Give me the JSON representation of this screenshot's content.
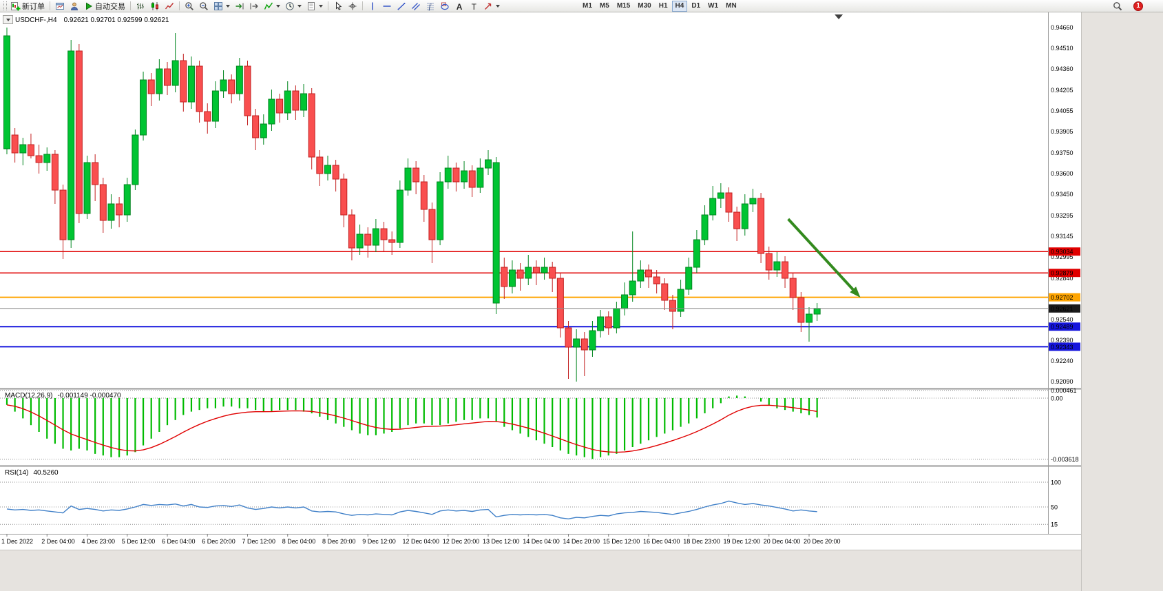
{
  "toolbar": {
    "active_timeframe": "H4",
    "items": [
      {
        "t": "grip"
      },
      {
        "t": "btn",
        "name": "new-order-button",
        "icon": "new-order-icon",
        "label": "新订单"
      },
      {
        "t": "sep"
      },
      {
        "t": "btn",
        "name": "chart-window-button",
        "icon": "chart-window-icon"
      },
      {
        "t": "btn",
        "name": "profiles-button",
        "icon": "profile-icon"
      },
      {
        "t": "btn",
        "name": "autotrading-button",
        "icon": "play-icon",
        "label": "自动交易"
      },
      {
        "t": "sep"
      },
      {
        "t": "btn",
        "name": "bar-chart-button",
        "icon": "bar-chart-icon"
      },
      {
        "t": "btn",
        "name": "candlestick-chart-button",
        "icon": "candle-chart-icon"
      },
      {
        "t": "btn",
        "name": "line-chart-button",
        "icon": "line-chart-icon"
      },
      {
        "t": "sep"
      },
      {
        "t": "btn",
        "name": "zoom-in-button",
        "icon": "zoom-in-icon"
      },
      {
        "t": "btn",
        "name": "zoom-out-button",
        "icon": "zoom-out-icon"
      },
      {
        "t": "btn",
        "name": "tile-windows-button",
        "icon": "tile-windows-icon",
        "dd": true
      },
      {
        "t": "btn",
        "name": "auto-scroll-button",
        "icon": "auto-scroll-icon"
      },
      {
        "t": "btn",
        "name": "chart-shift-button",
        "icon": "chart-shift-icon"
      },
      {
        "t": "btn",
        "name": "indicators-button",
        "icon": "indicators-icon",
        "dd": true
      },
      {
        "t": "btn",
        "name": "periods-button",
        "icon": "clock-icon",
        "dd": true
      },
      {
        "t": "btn",
        "name": "templates-button",
        "icon": "template-icon",
        "dd": true
      },
      {
        "t": "sep"
      },
      {
        "t": "btn",
        "name": "cursor-button",
        "icon": "cursor-icon"
      },
      {
        "t": "btn",
        "name": "crosshair-button",
        "icon": "crosshair-icon"
      },
      {
        "t": "sep"
      },
      {
        "t": "btn",
        "name": "vertical-line-button",
        "icon": "vertical-line-icon"
      },
      {
        "t": "btn",
        "name": "horizontal-line-button",
        "icon": "horizontal-line-icon"
      },
      {
        "t": "btn",
        "name": "trendline-button",
        "icon": "trendline-icon"
      },
      {
        "t": "btn",
        "name": "equidistant-channel-button",
        "icon": "channel-icon"
      },
      {
        "t": "btn",
        "name": "fibonacci-button",
        "icon": "fibonacci-icon"
      },
      {
        "t": "btn",
        "name": "shapes-button",
        "icon": "shapes-icon"
      },
      {
        "t": "btn",
        "name": "text-button",
        "icon": "text-icon"
      },
      {
        "t": "btn",
        "name": "text-label-button",
        "icon": "label-icon"
      },
      {
        "t": "btn",
        "name": "arrows-button",
        "icon": "arrow-tool-icon",
        "dd": true
      },
      {
        "t": "gap"
      },
      {
        "t": "tf",
        "label": "M1"
      },
      {
        "t": "tf",
        "label": "M5"
      },
      {
        "t": "tf",
        "label": "M15"
      },
      {
        "t": "tf",
        "label": "M30"
      },
      {
        "t": "tf",
        "label": "H1"
      },
      {
        "t": "tf",
        "label": "H4"
      },
      {
        "t": "tf",
        "label": "D1"
      },
      {
        "t": "tf",
        "label": "W1"
      },
      {
        "t": "tf",
        "label": "MN"
      },
      {
        "t": "spacer"
      },
      {
        "t": "btn",
        "name": "search-button",
        "icon": "search-icon"
      },
      {
        "t": "badge",
        "name": "notification-badge",
        "label": "1"
      }
    ]
  },
  "chart": {
    "title_symbol": "USDCHF-,H4",
    "title_ohlc": "0.92621 0.92701 0.92599 0.92621"
  },
  "chart_data": {
    "type": "candlestick",
    "symbol": "USDCHF-",
    "timeframe": "H4",
    "last_bar_ohlc": [
      0.92621,
      0.92701,
      0.92599,
      0.92621
    ],
    "price_axis": {
      "labels": [
        {
          "v": 0.9466,
          "t": "0.94660"
        },
        {
          "v": 0.9451,
          "t": "0.94510"
        },
        {
          "v": 0.9436,
          "t": "0.94360"
        },
        {
          "v": 0.94205,
          "t": "0.94205"
        },
        {
          "v": 0.94055,
          "t": "0.94055"
        },
        {
          "v": 0.93905,
          "t": "0.93905"
        },
        {
          "v": 0.9375,
          "t": "0.93750"
        },
        {
          "v": 0.936,
          "t": "0.93600"
        },
        {
          "v": 0.9345,
          "t": "0.93450"
        },
        {
          "v": 0.93295,
          "t": "0.93295"
        },
        {
          "v": 0.93145,
          "t": "0.93145"
        },
        {
          "v": 0.92995,
          "t": "0.92995"
        },
        {
          "v": 0.9284,
          "t": "0.92840"
        },
        {
          "v": 0.9254,
          "t": "0.92540"
        },
        {
          "v": 0.9239,
          "t": "0.92390"
        },
        {
          "v": 0.9224,
          "t": "0.92240"
        },
        {
          "v": 0.9209,
          "t": "0.92090"
        }
      ]
    },
    "candles": [
      [
        0.9378,
        0.9466,
        0.9374,
        0.946
      ],
      [
        0.9388,
        0.9393,
        0.9368,
        0.9375
      ],
      [
        0.9375,
        0.9386,
        0.9366,
        0.9381
      ],
      [
        0.9381,
        0.9389,
        0.9371,
        0.9373
      ],
      [
        0.9373,
        0.9381,
        0.936,
        0.9368
      ],
      [
        0.9368,
        0.9379,
        0.9362,
        0.9374
      ],
      [
        0.9374,
        0.9377,
        0.9338,
        0.9348
      ],
      [
        0.9348,
        0.9352,
        0.9298,
        0.9312
      ],
      [
        0.9312,
        0.9457,
        0.9306,
        0.9449
      ],
      [
        0.9449,
        0.9454,
        0.9324,
        0.9331
      ],
      [
        0.9331,
        0.9373,
        0.9327,
        0.9368
      ],
      [
        0.9368,
        0.9374,
        0.934,
        0.9352
      ],
      [
        0.9352,
        0.9357,
        0.9317,
        0.9326
      ],
      [
        0.9326,
        0.9345,
        0.932,
        0.9338
      ],
      [
        0.9338,
        0.9343,
        0.9321,
        0.933
      ],
      [
        0.933,
        0.9357,
        0.9325,
        0.9352
      ],
      [
        0.9352,
        0.9392,
        0.9348,
        0.9388
      ],
      [
        0.9388,
        0.9434,
        0.9384,
        0.9428
      ],
      [
        0.9428,
        0.9433,
        0.9409,
        0.9418
      ],
      [
        0.9418,
        0.9443,
        0.9413,
        0.9436
      ],
      [
        0.9436,
        0.9441,
        0.9417,
        0.9424
      ],
      [
        0.9424,
        0.9462,
        0.9419,
        0.9442
      ],
      [
        0.9442,
        0.9447,
        0.9405,
        0.9412
      ],
      [
        0.9412,
        0.9445,
        0.9407,
        0.9438
      ],
      [
        0.9438,
        0.9442,
        0.9397,
        0.9405
      ],
      [
        0.9405,
        0.9411,
        0.9389,
        0.9398
      ],
      [
        0.9398,
        0.9427,
        0.9393,
        0.942
      ],
      [
        0.942,
        0.9435,
        0.9415,
        0.9428
      ],
      [
        0.9428,
        0.9432,
        0.9411,
        0.9418
      ],
      [
        0.9418,
        0.9444,
        0.9413,
        0.9438
      ],
      [
        0.9438,
        0.9442,
        0.9395,
        0.9402
      ],
      [
        0.9402,
        0.9407,
        0.9377,
        0.9386
      ],
      [
        0.9386,
        0.9403,
        0.9381,
        0.9396
      ],
      [
        0.9396,
        0.9421,
        0.9391,
        0.9414
      ],
      [
        0.9414,
        0.9418,
        0.9397,
        0.9404
      ],
      [
        0.9404,
        0.9427,
        0.9399,
        0.942
      ],
      [
        0.942,
        0.9424,
        0.9399,
        0.9406
      ],
      [
        0.9406,
        0.9425,
        0.9401,
        0.9418
      ],
      [
        0.9418,
        0.9422,
        0.9363,
        0.9372
      ],
      [
        0.9372,
        0.9377,
        0.9351,
        0.936
      ],
      [
        0.936,
        0.9373,
        0.9355,
        0.9366
      ],
      [
        0.9366,
        0.937,
        0.9347,
        0.9356
      ],
      [
        0.9356,
        0.936,
        0.9321,
        0.933
      ],
      [
        0.933,
        0.9334,
        0.9297,
        0.9306
      ],
      [
        0.9306,
        0.9323,
        0.9301,
        0.9316
      ],
      [
        0.9316,
        0.9321,
        0.9299,
        0.9308
      ],
      [
        0.9308,
        0.9327,
        0.9303,
        0.932
      ],
      [
        0.932,
        0.9325,
        0.9303,
        0.9312
      ],
      [
        0.9312,
        0.9318,
        0.9301,
        0.931
      ],
      [
        0.931,
        0.9355,
        0.9306,
        0.9348
      ],
      [
        0.9348,
        0.9371,
        0.9344,
        0.9364
      ],
      [
        0.9364,
        0.9369,
        0.9345,
        0.9354
      ],
      [
        0.9354,
        0.9359,
        0.9325,
        0.9334
      ],
      [
        0.9334,
        0.9339,
        0.9295,
        0.9312
      ],
      [
        0.9312,
        0.9361,
        0.9308,
        0.9354
      ],
      [
        0.9354,
        0.9373,
        0.9349,
        0.9364
      ],
      [
        0.9364,
        0.9368,
        0.9347,
        0.9354
      ],
      [
        0.9354,
        0.9369,
        0.9349,
        0.9362
      ],
      [
        0.9362,
        0.9366,
        0.9343,
        0.935
      ],
      [
        0.935,
        0.9371,
        0.9346,
        0.9364
      ],
      [
        0.9364,
        0.9377,
        0.9359,
        0.937
      ],
      [
        0.9266,
        0.9372,
        0.9258,
        0.9368
      ],
      [
        0.9292,
        0.9299,
        0.9269,
        0.9278
      ],
      [
        0.9278,
        0.9297,
        0.9273,
        0.929
      ],
      [
        0.929,
        0.9295,
        0.9275,
        0.9284
      ],
      [
        0.9284,
        0.9301,
        0.9279,
        0.9292
      ],
      [
        0.9292,
        0.9297,
        0.9279,
        0.9288
      ],
      [
        0.9288,
        0.9299,
        0.9283,
        0.9292
      ],
      [
        0.9292,
        0.9296,
        0.9274,
        0.9284
      ],
      [
        0.9284,
        0.9288,
        0.9241,
        0.9248
      ],
      [
        0.9248,
        0.9253,
        0.9211,
        0.9234
      ],
      [
        0.9234,
        0.9247,
        0.9209,
        0.924
      ],
      [
        0.924,
        0.9245,
        0.9213,
        0.9232
      ],
      [
        0.9232,
        0.9253,
        0.9227,
        0.9246
      ],
      [
        0.9246,
        0.9261,
        0.9241,
        0.9256
      ],
      [
        0.9256,
        0.926,
        0.9243,
        0.9248
      ],
      [
        0.9248,
        0.9267,
        0.9244,
        0.9262
      ],
      [
        0.9262,
        0.9281,
        0.9257,
        0.9272
      ],
      [
        0.9272,
        0.9318,
        0.9267,
        0.9282
      ],
      [
        0.9282,
        0.9297,
        0.9277,
        0.929
      ],
      [
        0.929,
        0.9294,
        0.9277,
        0.9285
      ],
      [
        0.9285,
        0.929,
        0.9273,
        0.928
      ],
      [
        0.928,
        0.9284,
        0.9261,
        0.9268
      ],
      [
        0.9268,
        0.9272,
        0.9247,
        0.926
      ],
      [
        0.926,
        0.9283,
        0.9256,
        0.9276
      ],
      [
        0.9276,
        0.9299,
        0.9272,
        0.9292
      ],
      [
        0.9292,
        0.9319,
        0.9288,
        0.9312
      ],
      [
        0.9312,
        0.9337,
        0.9308,
        0.933
      ],
      [
        0.933,
        0.9351,
        0.9326,
        0.9342
      ],
      [
        0.9342,
        0.9353,
        0.9335,
        0.9346
      ],
      [
        0.9346,
        0.935,
        0.9325,
        0.9332
      ],
      [
        0.9332,
        0.9336,
        0.9311,
        0.932
      ],
      [
        0.932,
        0.9345,
        0.9315,
        0.9338
      ],
      [
        0.9338,
        0.9349,
        0.9332,
        0.9342
      ],
      [
        0.9342,
        0.9346,
        0.9295,
        0.9302
      ],
      [
        0.9302,
        0.9307,
        0.9283,
        0.929
      ],
      [
        0.929,
        0.9303,
        0.9285,
        0.9296
      ],
      [
        0.9296,
        0.93,
        0.9277,
        0.9284
      ],
      [
        0.9284,
        0.9288,
        0.9261,
        0.927
      ],
      [
        0.927,
        0.9274,
        0.9245,
        0.9252
      ],
      [
        0.9252,
        0.9263,
        0.9238,
        0.9258
      ],
      [
        0.9258,
        0.9266,
        0.9253,
        0.92621
      ]
    ],
    "time_axis": {
      "step_bars": 5,
      "labels": [
        "1 Dec 2022",
        "2 Dec 04:00",
        "4 Dec 23:00",
        "5 Dec 12:00",
        "6 Dec 04:00",
        "6 Dec 20:00",
        "7 Dec 12:00",
        "8 Dec 04:00",
        "8 Dec 20:00",
        "9 Dec 12:00",
        "12 Dec 04:00",
        "12 Dec 20:00",
        "13 Dec 12:00",
        "14 Dec 04:00",
        "14 Dec 20:00",
        "15 Dec 12:00",
        "16 Dec 04:00",
        "18 Dec 23:00",
        "19 Dec 12:00",
        "20 Dec 04:00",
        "20 Dec 20:00"
      ]
    },
    "hlines": [
      {
        "price": 0.93034,
        "label": "0.93034",
        "color": "#e00000",
        "width": 1.5
      },
      {
        "price": 0.92879,
        "label": "0.92879",
        "color": "#e00000",
        "width": 1.5
      },
      {
        "price": 0.92702,
        "label": "0.92702",
        "color": "#ffa500",
        "width": 2
      },
      {
        "price": 0.92489,
        "label": "0.92489",
        "color": "#1515dd",
        "width": 2
      },
      {
        "price": 0.92343,
        "label": "0.92343",
        "color": "#1515dd",
        "width": 2
      }
    ],
    "bid": {
      "price": 0.92621,
      "label": "0.92621",
      "line_color": "#8a8a8a",
      "box_color": "#1a1a1a"
    },
    "arrow": {
      "from_bar": 97.4,
      "from_price": 0.9327,
      "to_bar": 106.4,
      "to_price": 0.927,
      "color": "#338a1e"
    },
    "shift_marker_bar": 103.7,
    "macd": {
      "name": "MACD(12,26,9)",
      "values_text": "-0.001149 -0.000470",
      "value": -0.001149,
      "signal": -0.00047,
      "scale_labels": [
        {
          "v": 0.000461,
          "t": "0.000461"
        },
        {
          "v": 0,
          "t": "0.00"
        },
        {
          "v": -0.003618,
          "t": "-0.003618"
        }
      ],
      "values": [
        -0.0004,
        -0.0008,
        -0.0012,
        -0.0016,
        -0.002,
        -0.0024,
        -0.0027,
        -0.003,
        -0.0031,
        -0.003,
        -0.0031,
        -0.0033,
        -0.0034,
        -0.0035,
        -0.0035,
        -0.0034,
        -0.0032,
        -0.0028,
        -0.0024,
        -0.002,
        -0.0016,
        -0.0013,
        -0.001,
        -0.0008,
        -0.0007,
        -0.0006,
        -0.0006,
        -0.0005,
        -0.0005,
        -0.0006,
        -0.0006,
        -0.0007,
        -0.0008,
        -0.0008,
        -0.0007,
        -0.0007,
        -0.0007,
        -0.0008,
        -0.0009,
        -0.0011,
        -0.0013,
        -0.0015,
        -0.0017,
        -0.0019,
        -0.0021,
        -0.0022,
        -0.0022,
        -0.0021,
        -0.002,
        -0.0018,
        -0.0016,
        -0.0015,
        -0.0015,
        -0.0016,
        -0.0016,
        -0.0015,
        -0.0014,
        -0.0013,
        -0.0013,
        -0.0012,
        -0.0012,
        -0.0014,
        -0.0017,
        -0.0019,
        -0.0021,
        -0.0023,
        -0.0025,
        -0.0027,
        -0.0029,
        -0.0031,
        -0.0033,
        -0.0034,
        -0.0035,
        -0.0036,
        -0.0035,
        -0.0034,
        -0.0033,
        -0.0031,
        -0.0029,
        -0.0027,
        -0.0025,
        -0.0023,
        -0.0021,
        -0.0019,
        -0.0017,
        -0.0015,
        -0.0012,
        -0.0009,
        -0.0006,
        -0.0003,
        0.0001,
        0.00015,
        0.0001,
        0.0,
        -0.0002,
        -0.0004,
        -0.0006,
        -0.0007,
        -0.0008,
        -0.0009,
        -0.001,
        -0.001149
      ]
    },
    "rsi": {
      "name": "RSI(14)",
      "value_text": "40.5260",
      "value": 40.526,
      "levels": [
        {
          "v": 100,
          "t": "100"
        },
        {
          "v": 50,
          "t": "50"
        },
        {
          "v": 15,
          "t": "15"
        }
      ],
      "values": [
        46,
        44,
        45,
        43,
        44,
        42,
        40,
        38,
        52,
        45,
        47,
        45,
        42,
        44,
        43,
        46,
        50,
        55,
        53,
        55,
        54,
        56,
        52,
        55,
        50,
        49,
        52,
        53,
        51,
        54,
        48,
        45,
        47,
        50,
        48,
        50,
        48,
        50,
        42,
        40,
        41,
        40,
        36,
        33,
        35,
        34,
        36,
        35,
        34,
        40,
        43,
        41,
        38,
        35,
        42,
        44,
        42,
        43,
        41,
        44,
        45,
        30,
        33,
        35,
        34,
        35,
        34,
        35,
        33,
        28,
        26,
        29,
        28,
        31,
        33,
        32,
        36,
        38,
        39,
        41,
        40,
        39,
        37,
        35,
        38,
        41,
        45,
        50,
        54,
        57,
        62,
        58,
        55,
        57,
        54,
        52,
        49,
        46,
        42,
        44,
        42,
        40.5
      ]
    },
    "colors": {
      "bull_fill": "#00c432",
      "bull_stroke": "#00851e",
      "bear_fill": "#f94f4f",
      "bear_stroke": "#c21f1f",
      "macd_hist": "#00bb00",
      "macd_signal": "#e00000",
      "rsi_line": "#4080c8"
    }
  }
}
